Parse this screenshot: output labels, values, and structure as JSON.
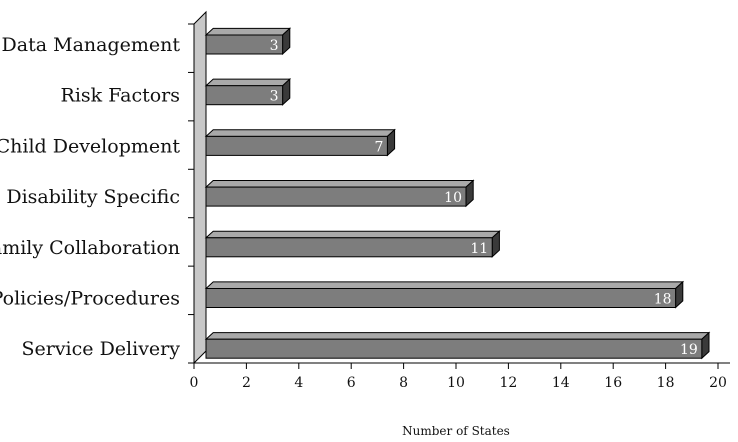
{
  "chart_data": {
    "type": "bar",
    "orientation": "horizontal",
    "categories": [
      "Data Management",
      "Risk Factors",
      "Child Development",
      "Disability Specific",
      "Family Collaboration",
      "Policies/Procedures",
      "Service Delivery"
    ],
    "values": [
      3,
      3,
      7,
      10,
      11,
      18,
      19
    ],
    "xlabel": "Number of States",
    "ylabel": "",
    "xlim": [
      0,
      20
    ],
    "xticks": [
      0,
      2,
      4,
      6,
      8,
      10,
      12,
      14,
      16,
      18,
      20
    ],
    "grid": false,
    "legend": "none",
    "colors": {
      "bar_front": "#7d7d7d",
      "bar_top": "#a9a9a9",
      "bar_side": "#3a3a3a",
      "wall": "#c8c8c8",
      "data_label": "#ffffff"
    }
  }
}
